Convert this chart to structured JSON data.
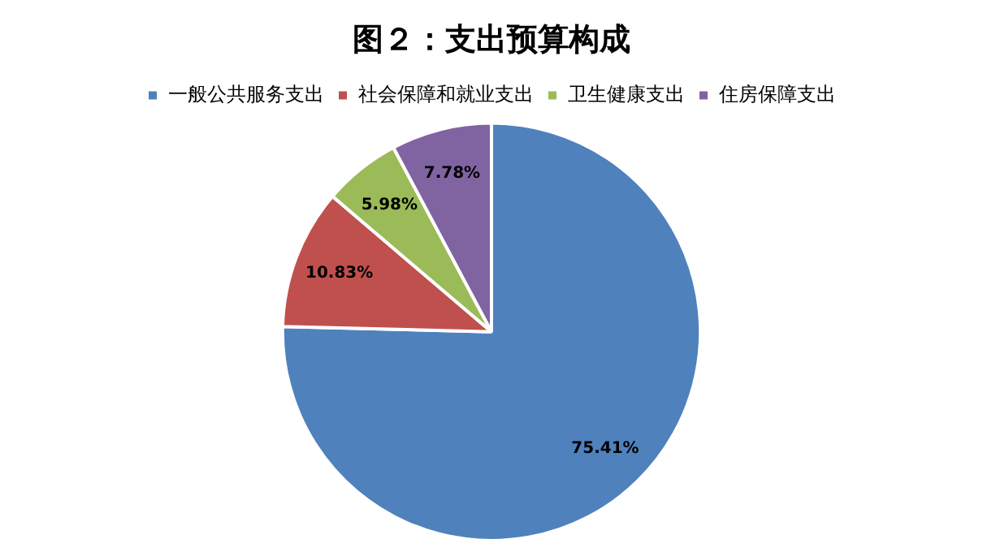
{
  "chart_data": {
    "type": "pie",
    "title": "图２：支出预算构成",
    "categories": [
      "一般公共服务支出",
      "社会保障和就业支出",
      "卫生健康支出",
      "住房保障支出"
    ],
    "values": [
      75.41,
      10.83,
      5.98,
      7.78
    ],
    "colors": [
      "#4f81bd",
      "#c0504d",
      "#9bbb59",
      "#8064a2"
    ],
    "value_labels": [
      "75.41%",
      "10.83%",
      "5.98%",
      "7.78%"
    ],
    "legend": "top"
  }
}
